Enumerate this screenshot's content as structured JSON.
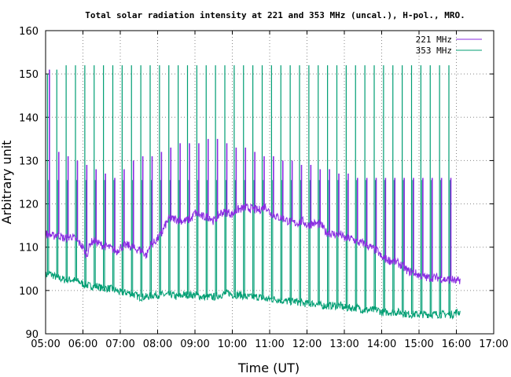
{
  "chart_data": {
    "type": "line",
    "title": "Total solar radiation intensity at 221 and 353 MHz (uncal.), H-pol., MRO.",
    "xlabel": "Time (UT)",
    "ylabel": "Arbitrary unit",
    "xlim_hours": [
      5,
      17
    ],
    "ylim": [
      90,
      160
    ],
    "x_ticks": [
      "05:00",
      "06:00",
      "07:00",
      "08:00",
      "09:00",
      "10:00",
      "11:00",
      "12:00",
      "13:00",
      "14:00",
      "15:00",
      "16:00",
      "17:00"
    ],
    "y_ticks": [
      90,
      100,
      110,
      120,
      130,
      140,
      150,
      160
    ],
    "grid": true,
    "legend_position": "top-right",
    "colors": {
      "s221": "#8a2be2",
      "s353": "#009e73"
    },
    "calibration_start_hour": 5.05,
    "calibration_period_hours": 0.25,
    "calibration_end_hour": 16.02,
    "series": [
      {
        "name": "221 MHz",
        "x_hours": [
          5.0,
          5.1,
          5.2,
          5.3,
          5.5,
          5.7,
          5.9,
          6.0,
          6.1,
          6.2,
          6.3,
          6.5,
          6.7,
          6.9,
          7.0,
          7.2,
          7.4,
          7.5,
          7.6,
          7.7,
          7.8,
          7.9,
          8.0,
          8.1,
          8.2,
          8.3,
          8.5,
          8.7,
          8.9,
          9.0,
          9.2,
          9.4,
          9.5,
          9.7,
          9.9,
          10.0,
          10.1,
          10.3,
          10.5,
          10.7,
          10.9,
          11.0,
          11.2,
          11.4,
          11.5,
          11.7,
          11.9,
          12.0,
          12.2,
          12.4,
          12.5,
          12.7,
          12.9,
          13.0,
          13.2,
          13.4,
          13.5,
          13.7,
          13.9,
          14.0,
          14.2,
          14.4,
          14.5,
          14.7,
          14.9,
          15.0,
          15.2,
          15.4,
          15.5,
          15.7,
          15.9,
          16.0,
          16.1
        ],
        "y": [
          113,
          113,
          112.5,
          113,
          112,
          112.5,
          111,
          110,
          108,
          111,
          111.5,
          110.5,
          110,
          109,
          110,
          110.5,
          109.5,
          109.5,
          109,
          108,
          110.5,
          111,
          112,
          113,
          115,
          116.5,
          116.5,
          116,
          116.5,
          118,
          117,
          117,
          116,
          118,
          118,
          117.5,
          118.5,
          119,
          119,
          118.5,
          119.5,
          118,
          117,
          116.5,
          116,
          115.5,
          116,
          115,
          115.5,
          115,
          113.5,
          113,
          113,
          112,
          112,
          111,
          111,
          110,
          109,
          107.5,
          107,
          106.5,
          106,
          104.5,
          104,
          103.5,
          103,
          103,
          103,
          102.5,
          102.5,
          102,
          102.5
        ]
      },
      {
        "name": "353 MHz",
        "x_hours": [
          5.0,
          5.1,
          5.2,
          5.3,
          5.5,
          5.7,
          5.9,
          6.0,
          6.2,
          6.4,
          6.5,
          6.7,
          6.9,
          7.0,
          7.2,
          7.4,
          7.5,
          7.7,
          7.9,
          8.0,
          8.2,
          8.4,
          8.5,
          8.7,
          8.9,
          9.0,
          9.2,
          9.4,
          9.5,
          9.7,
          9.9,
          10.0,
          10.2,
          10.4,
          10.5,
          10.7,
          10.9,
          11.0,
          11.2,
          11.4,
          11.5,
          11.7,
          11.9,
          12.0,
          12.2,
          12.4,
          12.5,
          12.7,
          12.9,
          13.0,
          13.2,
          13.4,
          13.5,
          13.7,
          13.9,
          14.0,
          14.2,
          14.4,
          14.5,
          14.7,
          14.9,
          15.0,
          15.2,
          15.4,
          15.5,
          15.7,
          15.9,
          16.0,
          16.1
        ],
        "y": [
          103.5,
          104,
          103.5,
          103,
          102.5,
          102.5,
          102,
          101.5,
          101,
          101,
          100.5,
          100.5,
          100,
          99.5,
          99.5,
          99,
          98.5,
          98.5,
          99,
          99,
          99,
          99,
          98.5,
          99,
          99,
          99,
          98.5,
          98.5,
          98.5,
          99,
          99.5,
          99,
          99,
          98.5,
          98.5,
          98.5,
          98,
          98,
          98,
          97.5,
          97.5,
          97.5,
          97,
          97,
          97,
          96.5,
          96.5,
          96.5,
          96.5,
          96,
          96,
          96,
          95.5,
          95.5,
          95.5,
          95,
          95,
          95,
          95,
          94.5,
          94.5,
          94.5,
          94.5,
          94.5,
          94.5,
          94.5,
          94.5,
          95,
          95
        ]
      }
    ],
    "calibration_spikes": {
      "s221_tops": [
        151,
        132,
        131,
        130,
        129,
        128,
        127,
        126,
        128,
        130,
        131,
        131,
        132,
        133,
        134,
        134,
        134,
        135,
        135,
        134,
        133,
        133,
        132,
        131,
        131,
        130,
        130,
        129,
        129,
        128,
        128,
        127,
        127,
        126,
        126,
        126,
        126,
        126,
        126,
        126,
        126,
        126,
        126,
        126,
        126
      ],
      "s353_tops": [
        150,
        151,
        152,
        152,
        152,
        152,
        152,
        152,
        152,
        152,
        152,
        152,
        152,
        152,
        152,
        152,
        152,
        152,
        152,
        152,
        152,
        152,
        152,
        152,
        152,
        152,
        152,
        152,
        152,
        152,
        152,
        152,
        152,
        152,
        152,
        152,
        152,
        152,
        152,
        152,
        152,
        152,
        152,
        152,
        150
      ],
      "s353_plateau": 125.5
    }
  }
}
